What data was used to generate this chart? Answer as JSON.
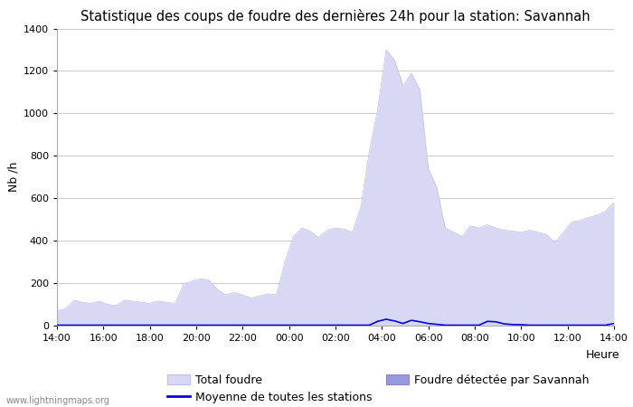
{
  "title": "Statistique des coups de foudre des dernières 24h pour la station: Savannah",
  "ylabel": "Nb /h",
  "xlabel": "Heure",
  "watermark": "www.lightningmaps.org",
  "ylim": [
    0,
    1400
  ],
  "yticks": [
    0,
    200,
    400,
    600,
    800,
    1000,
    1200,
    1400
  ],
  "xtick_labels": [
    "14:00",
    "16:00",
    "18:00",
    "20:00",
    "22:00",
    "00:00",
    "02:00",
    "04:00",
    "06:00",
    "08:00",
    "10:00",
    "12:00",
    "14:00"
  ],
  "total_foudre_color": "#d8d8f4",
  "total_foudre_edge": "#c0c0e8",
  "savannah_color": "#9898e0",
  "savannah_edge": "#8888cc",
  "moyenne_color": "#0000dd",
  "background_color": "#ffffff",
  "grid_color": "#cccccc",
  "title_fontsize": 10.5,
  "label_fontsize": 9,
  "tick_fontsize": 8,
  "total_foudre": [
    70,
    80,
    120,
    110,
    105,
    115,
    100,
    95,
    120,
    115,
    110,
    105,
    115,
    110,
    105,
    195,
    210,
    220,
    215,
    170,
    145,
    155,
    145,
    130,
    140,
    150,
    145,
    300,
    420,
    460,
    445,
    415,
    450,
    460,
    455,
    440,
    560,
    820,
    1020,
    1300,
    1250,
    1130,
    1190,
    1110,
    740,
    650,
    460,
    440,
    420,
    470,
    460,
    475,
    460,
    450,
    445,
    440,
    450,
    440,
    430,
    390,
    440,
    490,
    495,
    510,
    520,
    540,
    580
  ],
  "savannah_detected": [
    2,
    2,
    2,
    2,
    2,
    2,
    2,
    2,
    2,
    2,
    2,
    2,
    2,
    2,
    2,
    2,
    2,
    2,
    2,
    2,
    2,
    2,
    2,
    2,
    2,
    2,
    2,
    2,
    2,
    2,
    2,
    2,
    2,
    2,
    2,
    2,
    2,
    2,
    2,
    2,
    2,
    2,
    2,
    2,
    2,
    2,
    2,
    2,
    2,
    2,
    2,
    2,
    2,
    2,
    2,
    2,
    2,
    2,
    2,
    2,
    2,
    2,
    2,
    2,
    2,
    2,
    2
  ],
  "moyenne": [
    2,
    2,
    2,
    2,
    2,
    2,
    2,
    2,
    2,
    2,
    2,
    2,
    2,
    2,
    2,
    2,
    2,
    2,
    2,
    2,
    2,
    2,
    2,
    2,
    2,
    2,
    2,
    2,
    2,
    2,
    2,
    2,
    2,
    2,
    2,
    2,
    2,
    2,
    20,
    30,
    22,
    10,
    25,
    18,
    10,
    6,
    2,
    2,
    2,
    2,
    2,
    20,
    18,
    8,
    5,
    4,
    2,
    2,
    2,
    2,
    2,
    2,
    2,
    2,
    2,
    2,
    10
  ]
}
